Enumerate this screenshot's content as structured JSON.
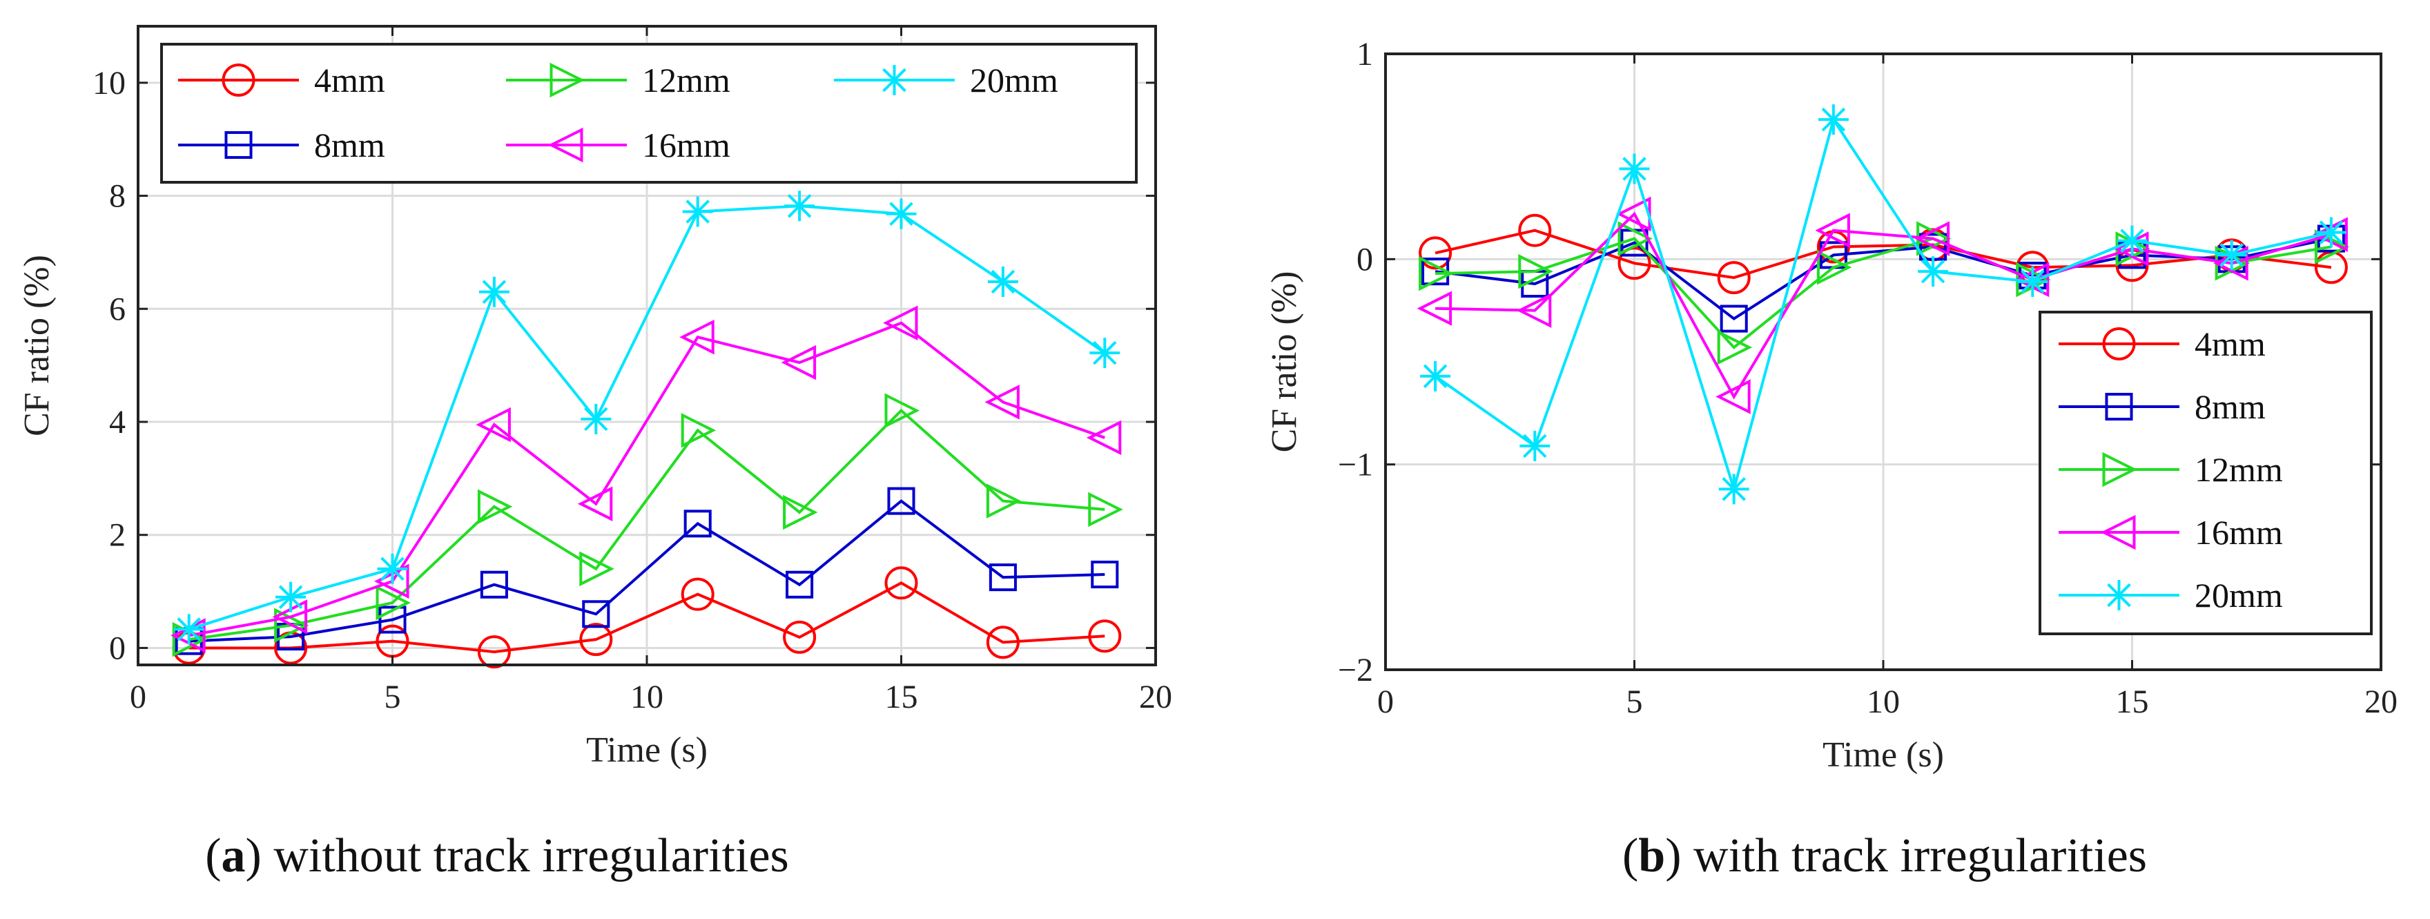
{
  "chart_data": [
    {
      "type": "line",
      "panel": "a",
      "caption_letter": "a",
      "caption_open": "(",
      "caption_close": ")",
      "caption_text": " without track irregularities",
      "xlabel": "Time (s)",
      "ylabel": "CF ratio (%)",
      "xlim": [
        0,
        20
      ],
      "ylim": [
        -0.3,
        11
      ],
      "xticks": [
        0,
        5,
        10,
        15,
        20
      ],
      "yticks": [
        0,
        2,
        4,
        6,
        8,
        10
      ],
      "yticklabels": [
        "0",
        "2",
        "4",
        "6",
        "8",
        "10"
      ],
      "grid": true,
      "legend_position": "top",
      "x": [
        1,
        3,
        5,
        7,
        9,
        11,
        13,
        15,
        17,
        19
      ],
      "series": [
        {
          "name": "4mm",
          "color": "#ff0000",
          "marker": "circle",
          "values": [
            0.0,
            0.0,
            0.12,
            -0.07,
            0.15,
            0.95,
            0.19,
            1.15,
            0.1,
            0.21
          ]
        },
        {
          "name": "8mm",
          "color": "#0000cc",
          "marker": "square",
          "values": [
            0.12,
            0.2,
            0.5,
            1.12,
            0.6,
            2.2,
            1.12,
            2.6,
            1.25,
            1.3
          ]
        },
        {
          "name": "12mm",
          "color": "#22dd22",
          "marker": "triangle-right",
          "values": [
            0.15,
            0.4,
            0.8,
            2.5,
            1.4,
            3.85,
            2.4,
            4.2,
            2.6,
            2.45
          ]
        },
        {
          "name": "16mm",
          "color": "#ff00ff",
          "marker": "triangle-left",
          "values": [
            0.22,
            0.55,
            1.18,
            3.95,
            2.55,
            5.5,
            5.05,
            5.75,
            4.35,
            3.72
          ]
        },
        {
          "name": "20mm",
          "color": "#00e5ff",
          "marker": "asterisk",
          "values": [
            0.33,
            0.9,
            1.4,
            6.3,
            4.05,
            7.72,
            7.82,
            7.68,
            6.48,
            5.22
          ]
        }
      ]
    },
    {
      "type": "line",
      "panel": "b",
      "caption_letter": "b",
      "caption_open": "(",
      "caption_close": ")",
      "caption_text": " with track irregularities",
      "xlabel": "Time (s)",
      "ylabel": "CF ratio (%)",
      "xlim": [
        0,
        20
      ],
      "ylim": [
        -2,
        1
      ],
      "xticks": [
        0,
        5,
        10,
        15,
        20
      ],
      "yticks": [
        -2,
        -1,
        0,
        1
      ],
      "yticklabels": [
        "−2",
        "−1",
        "0",
        "1"
      ],
      "grid": true,
      "legend_position": "bottom-right",
      "x": [
        1,
        3,
        5,
        7,
        9,
        11,
        13,
        15,
        17,
        19
      ],
      "series": [
        {
          "name": "4mm",
          "color": "#ff0000",
          "marker": "circle",
          "values": [
            0.03,
            0.14,
            -0.02,
            -0.09,
            0.06,
            0.07,
            -0.04,
            -0.03,
            0.02,
            -0.04
          ]
        },
        {
          "name": "8mm",
          "color": "#0000cc",
          "marker": "square",
          "values": [
            -0.06,
            -0.12,
            0.08,
            -0.29,
            0.02,
            0.06,
            -0.08,
            0.02,
            0.0,
            0.1
          ]
        },
        {
          "name": "12mm",
          "color": "#22dd22",
          "marker": "triangle-right",
          "values": [
            -0.07,
            -0.06,
            0.1,
            -0.43,
            -0.04,
            0.1,
            -0.1,
            0.05,
            -0.02,
            0.06
          ]
        },
        {
          "name": "16mm",
          "color": "#ff00ff",
          "marker": "triangle-left",
          "values": [
            -0.24,
            -0.25,
            0.22,
            -0.67,
            0.14,
            0.1,
            -0.1,
            0.05,
            -0.02,
            0.12
          ]
        },
        {
          "name": "20mm",
          "color": "#00e5ff",
          "marker": "asterisk",
          "values": [
            -0.57,
            -0.91,
            0.44,
            -1.12,
            0.68,
            -0.06,
            -0.11,
            0.09,
            0.02,
            0.13
          ]
        }
      ]
    }
  ]
}
